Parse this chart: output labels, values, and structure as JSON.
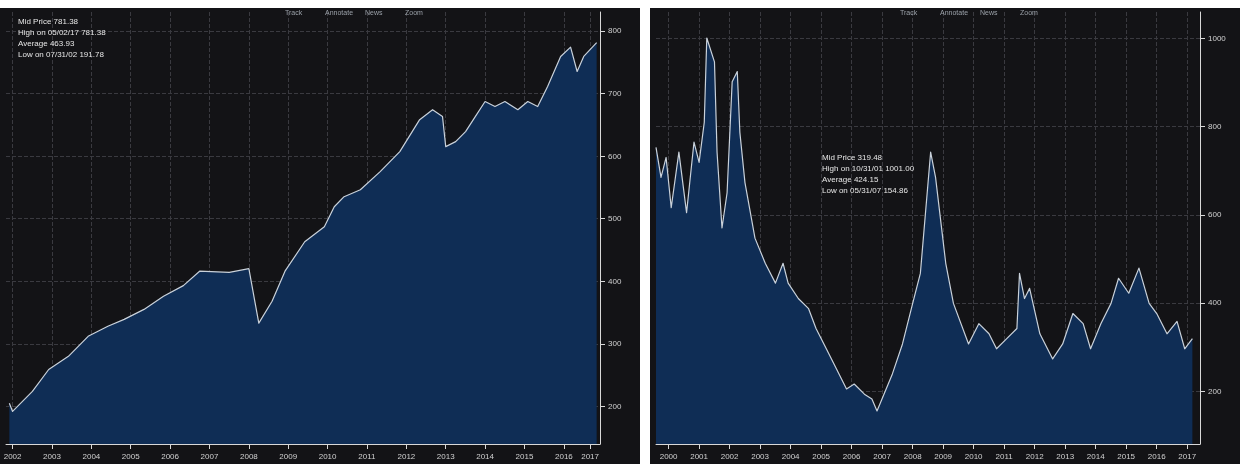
{
  "chart_data": [
    {
      "type": "area",
      "xlim": [
        "2002-05",
        "2017-06"
      ],
      "ylim": [
        140,
        830
      ],
      "yticks": [
        200,
        300,
        400,
        500,
        600,
        700,
        800
      ],
      "grid": true,
      "xticks": [
        {
          "value": "2002-07",
          "label": "2002"
        },
        {
          "value": "2003-07",
          "label": "2003"
        },
        {
          "value": "2004-07",
          "label": "2004"
        },
        {
          "value": "2005-07",
          "label": "2005"
        },
        {
          "value": "2006-07",
          "label": "2006"
        },
        {
          "value": "2007-07",
          "label": "2007"
        },
        {
          "value": "2008-07",
          "label": "2008"
        },
        {
          "value": "2009-07",
          "label": "2009"
        },
        {
          "value": "2010-07",
          "label": "2010"
        },
        {
          "value": "2011-07",
          "label": "2011"
        },
        {
          "value": "2012-07",
          "label": "2012"
        },
        {
          "value": "2013-07",
          "label": "2013"
        },
        {
          "value": "2014-07",
          "label": "2014"
        },
        {
          "value": "2015-07",
          "label": "2015"
        },
        {
          "value": "2016-07",
          "label": "2016"
        },
        {
          "value": "2017-03",
          "label": "2017"
        }
      ],
      "annotations": [
        "Mid Price 781.38",
        "High on 05/02/17 781.38",
        "Average 463.93",
        "Low on 07/31/02 191.78",
        "Track",
        "Annotate",
        "News",
        "Zoom"
      ],
      "series": [
        {
          "color": "#0f2d55",
          "x": [
            "2002-06",
            "2002-07",
            "2003-01",
            "2003-06",
            "2003-12",
            "2004-06",
            "2004-12",
            "2005-05",
            "2005-11",
            "2006-05",
            "2006-11",
            "2007-04",
            "2008-01",
            "2008-07",
            "2008-10",
            "2009-02",
            "2009-06",
            "2009-12",
            "2010-06",
            "2010-09",
            "2010-12",
            "2011-05",
            "2011-11",
            "2012-05",
            "2012-11",
            "2013-03",
            "2013-06",
            "2013-07",
            "2013-10",
            "2014-01",
            "2014-04",
            "2014-07",
            "2014-10",
            "2015-01",
            "2015-05",
            "2015-08",
            "2015-11",
            "2016-02",
            "2016-06",
            "2016-09",
            "2016-11",
            "2017-01",
            "2017-05"
          ],
          "values": [
            205,
            192,
            224,
            259,
            280,
            312,
            328,
            339,
            355,
            376,
            393,
            416,
            414,
            420,
            333,
            368,
            416,
            463,
            487,
            519,
            535,
            546,
            575,
            607,
            658,
            674,
            663,
            615,
            623,
            639,
            663,
            687,
            679,
            687,
            674,
            687,
            679,
            711,
            759,
            774,
            735,
            759,
            781
          ]
        }
      ]
    },
    {
      "type": "area",
      "xlim": [
        "2000-02",
        "2017-12"
      ],
      "ylim": [
        80,
        1060
      ],
      "yticks": [
        200,
        400,
        600,
        800,
        1000
      ],
      "grid": true,
      "xticks": [
        {
          "value": "2000-07",
          "label": "2000"
        },
        {
          "value": "2001-07",
          "label": "2001"
        },
        {
          "value": "2002-07",
          "label": "2002"
        },
        {
          "value": "2003-07",
          "label": "2003"
        },
        {
          "value": "2004-07",
          "label": "2004"
        },
        {
          "value": "2005-07",
          "label": "2005"
        },
        {
          "value": "2006-07",
          "label": "2006"
        },
        {
          "value": "2007-07",
          "label": "2007"
        },
        {
          "value": "2008-07",
          "label": "2008"
        },
        {
          "value": "2009-07",
          "label": "2009"
        },
        {
          "value": "2010-07",
          "label": "2010"
        },
        {
          "value": "2011-07",
          "label": "2011"
        },
        {
          "value": "2012-07",
          "label": "2012"
        },
        {
          "value": "2013-07",
          "label": "2013"
        },
        {
          "value": "2014-07",
          "label": "2014"
        },
        {
          "value": "2015-07",
          "label": "2015"
        },
        {
          "value": "2016-07",
          "label": "2016"
        },
        {
          "value": "2017-07",
          "label": "2017"
        }
      ],
      "annotations": [
        "Mid Price 319.48",
        "High on 10/31/01 1001.00",
        "Average 424.15",
        "Low on 05/31/07 154.86",
        "Track",
        "Annotate",
        "News",
        "Zoom"
      ],
      "series": [
        {
          "color": "#0f2d55",
          "x": [
            "2000-02",
            "2000-04",
            "2000-06",
            "2000-08",
            "2000-11",
            "2001-02",
            "2001-05",
            "2001-07",
            "2001-09",
            "2001-10",
            "2002-01",
            "2002-02",
            "2002-04",
            "2002-06",
            "2002-08",
            "2002-10",
            "2002-11",
            "2003-01",
            "2003-05",
            "2003-09",
            "2004-01",
            "2004-04",
            "2004-06",
            "2004-10",
            "2005-02",
            "2005-05",
            "2005-09",
            "2006-01",
            "2006-05",
            "2006-08",
            "2006-12",
            "2007-03",
            "2007-05",
            "2007-11",
            "2008-03",
            "2008-07",
            "2008-10",
            "2009-02",
            "2009-04",
            "2009-08",
            "2009-11",
            "2010-05",
            "2010-09",
            "2011-01",
            "2011-04",
            "2011-08",
            "2011-12",
            "2012-01",
            "2012-03",
            "2012-05",
            "2012-09",
            "2013-02",
            "2013-06",
            "2013-10",
            "2014-02",
            "2014-05",
            "2014-09",
            "2015-01",
            "2015-04",
            "2015-08",
            "2015-12",
            "2016-04",
            "2016-07",
            "2016-11",
            "2017-03",
            "2017-06",
            "2017-09"
          ],
          "values": [
            753,
            685,
            730,
            616,
            742,
            605,
            765,
            719,
            810,
            1001,
            947,
            742,
            570,
            650,
            902,
            925,
            787,
            673,
            547,
            490,
            445,
            490,
            445,
            410,
            387,
            342,
            296,
            250,
            205,
            216,
            193,
            182,
            155,
            239,
            307,
            399,
            467,
            742,
            685,
            490,
            399,
            307,
            353,
            330,
            296,
            319,
            342,
            467,
            410,
            433,
            330,
            273,
            307,
            376,
            353,
            296,
            353,
            399,
            456,
            422,
            479,
            399,
            376,
            330,
            358,
            296,
            319
          ]
        }
      ]
    }
  ]
}
